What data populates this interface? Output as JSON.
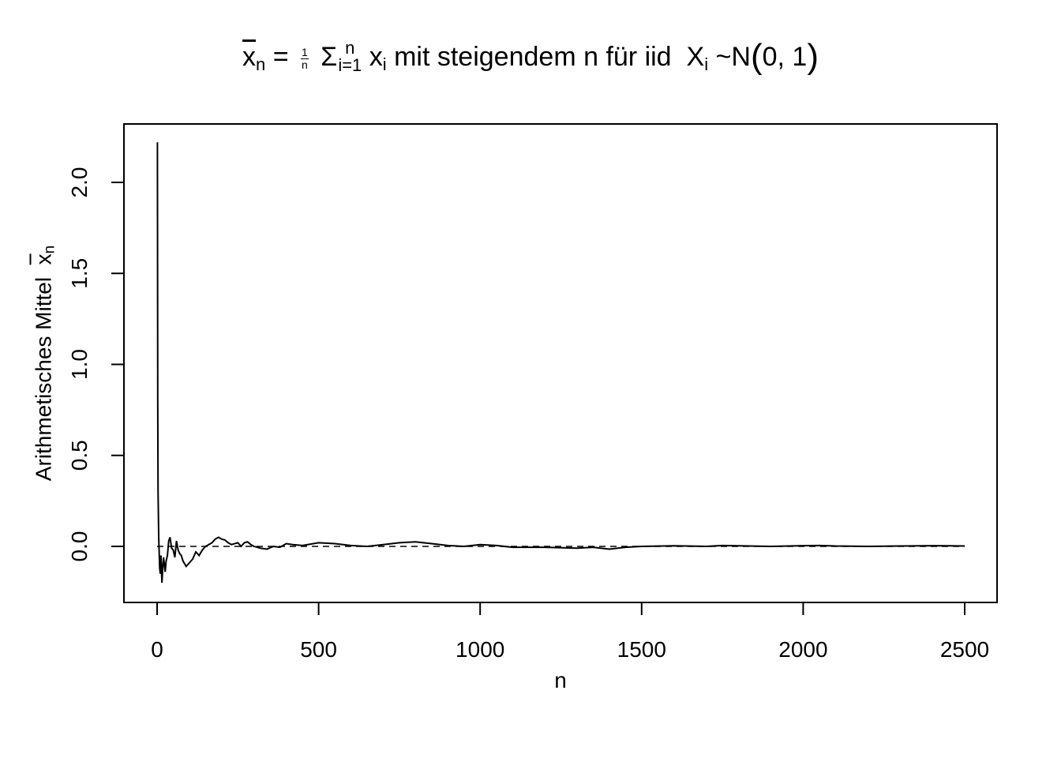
{
  "title": {
    "xbar": "x",
    "sub_n": "n",
    "equals": "=",
    "frac_num": "1",
    "frac_den": "n",
    "sigma": "Σ",
    "sum_upper": "n",
    "sum_lower": "i=1",
    "x": "x",
    "sub_i": "i",
    "text": "mit steigendem n für iid",
    "X": "X",
    "sub_i2": "i",
    "tilde_N": "~N",
    "params": "0, 1"
  },
  "ylabel": {
    "text": "Arithmetisches Mittel",
    "xbar": "x",
    "sub": "n"
  },
  "chart_data": {
    "type": "line",
    "xlabel": "n",
    "xlim": [
      0,
      2500
    ],
    "ylim": [
      -0.22,
      2.23
    ],
    "x_ticks": [
      "0",
      "500",
      "1000",
      "1500",
      "2000",
      "2500"
    ],
    "y_ticks": [
      "0.0",
      "0.5",
      "1.0",
      "1.5",
      "2.0"
    ],
    "reference_line": {
      "y": 0,
      "style": "dashed"
    },
    "grid": false,
    "legend": "none",
    "series": [
      {
        "x": [
          1,
          2,
          3,
          5,
          8,
          10,
          12,
          15,
          18,
          20,
          25,
          28,
          32,
          36,
          40,
          45,
          50,
          55,
          60,
          65,
          70,
          75,
          80,
          90,
          100,
          110,
          120,
          130,
          140,
          150,
          160,
          170,
          180,
          190,
          200,
          210,
          220,
          230,
          240,
          250,
          260,
          270,
          280,
          290,
          300,
          320,
          340,
          360,
          380,
          400,
          420,
          450,
          500,
          550,
          600,
          650,
          700,
          750,
          800,
          850,
          900,
          950,
          1000,
          1050,
          1100,
          1200,
          1300,
          1350,
          1400,
          1450,
          1500,
          1600,
          1700,
          1750,
          1800,
          1900,
          2000,
          2050,
          2100,
          2200,
          2300,
          2400,
          2450,
          2500
        ],
        "y": [
          2.22,
          0.8,
          0.3,
          0.05,
          -0.12,
          -0.15,
          -0.05,
          -0.2,
          -0.1,
          -0.06,
          -0.14,
          -0.08,
          -0.05,
          0.03,
          0.05,
          -0.01,
          -0.02,
          -0.06,
          0.03,
          -0.02,
          -0.04,
          -0.05,
          -0.08,
          -0.11,
          -0.09,
          -0.07,
          -0.03,
          -0.05,
          -0.02,
          0.0,
          0.01,
          0.02,
          0.04,
          0.05,
          0.04,
          0.035,
          0.02,
          0.01,
          0.015,
          0.02,
          0.0,
          0.02,
          0.025,
          0.01,
          0.0,
          -0.01,
          -0.015,
          0.0,
          -0.005,
          0.015,
          0.01,
          0.005,
          0.02,
          0.015,
          0.005,
          0.0,
          0.01,
          0.02,
          0.025,
          0.015,
          0.005,
          0.0,
          0.01,
          0.005,
          -0.005,
          -0.005,
          -0.01,
          -0.005,
          -0.015,
          -0.005,
          0.0,
          0.003,
          0.0,
          0.005,
          0.003,
          0.0,
          0.004,
          0.005,
          0.002,
          0.0,
          0.002,
          0.004,
          0.003,
          0.002
        ]
      }
    ]
  }
}
